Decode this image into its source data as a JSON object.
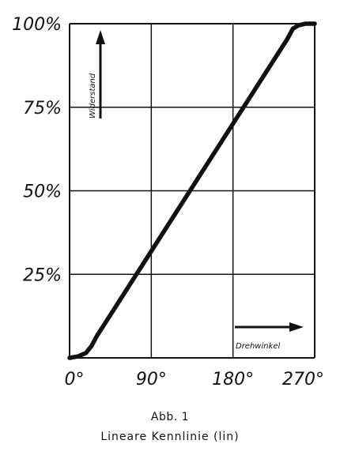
{
  "chart_data": {
    "type": "line",
    "x": [
      0,
      10,
      18,
      24,
      30,
      240,
      246,
      252,
      260,
      270
    ],
    "y": [
      0,
      0.5,
      1.5,
      3.5,
      6.5,
      95.5,
      98.5,
      99.5,
      100,
      100
    ],
    "xlim": [
      0,
      270
    ],
    "ylim": [
      0,
      100
    ],
    "x_ticks": [
      0,
      90,
      180,
      270
    ],
    "x_tick_labels": [
      "0°",
      "90°",
      "180°",
      "270°"
    ],
    "y_ticks": [
      25,
      50,
      75,
      100
    ],
    "y_tick_labels": [
      "25%",
      "50%",
      "75%",
      "100%"
    ],
    "xlabel": "Drehwinkel",
    "ylabel": "Widerstand",
    "grid": true
  },
  "caption": {
    "figure": "Abb. 1",
    "title": "Lineare Kennlinie (lin)"
  },
  "colors": {
    "line": "#111111",
    "grid": "#111111",
    "background": "#ffffff"
  }
}
